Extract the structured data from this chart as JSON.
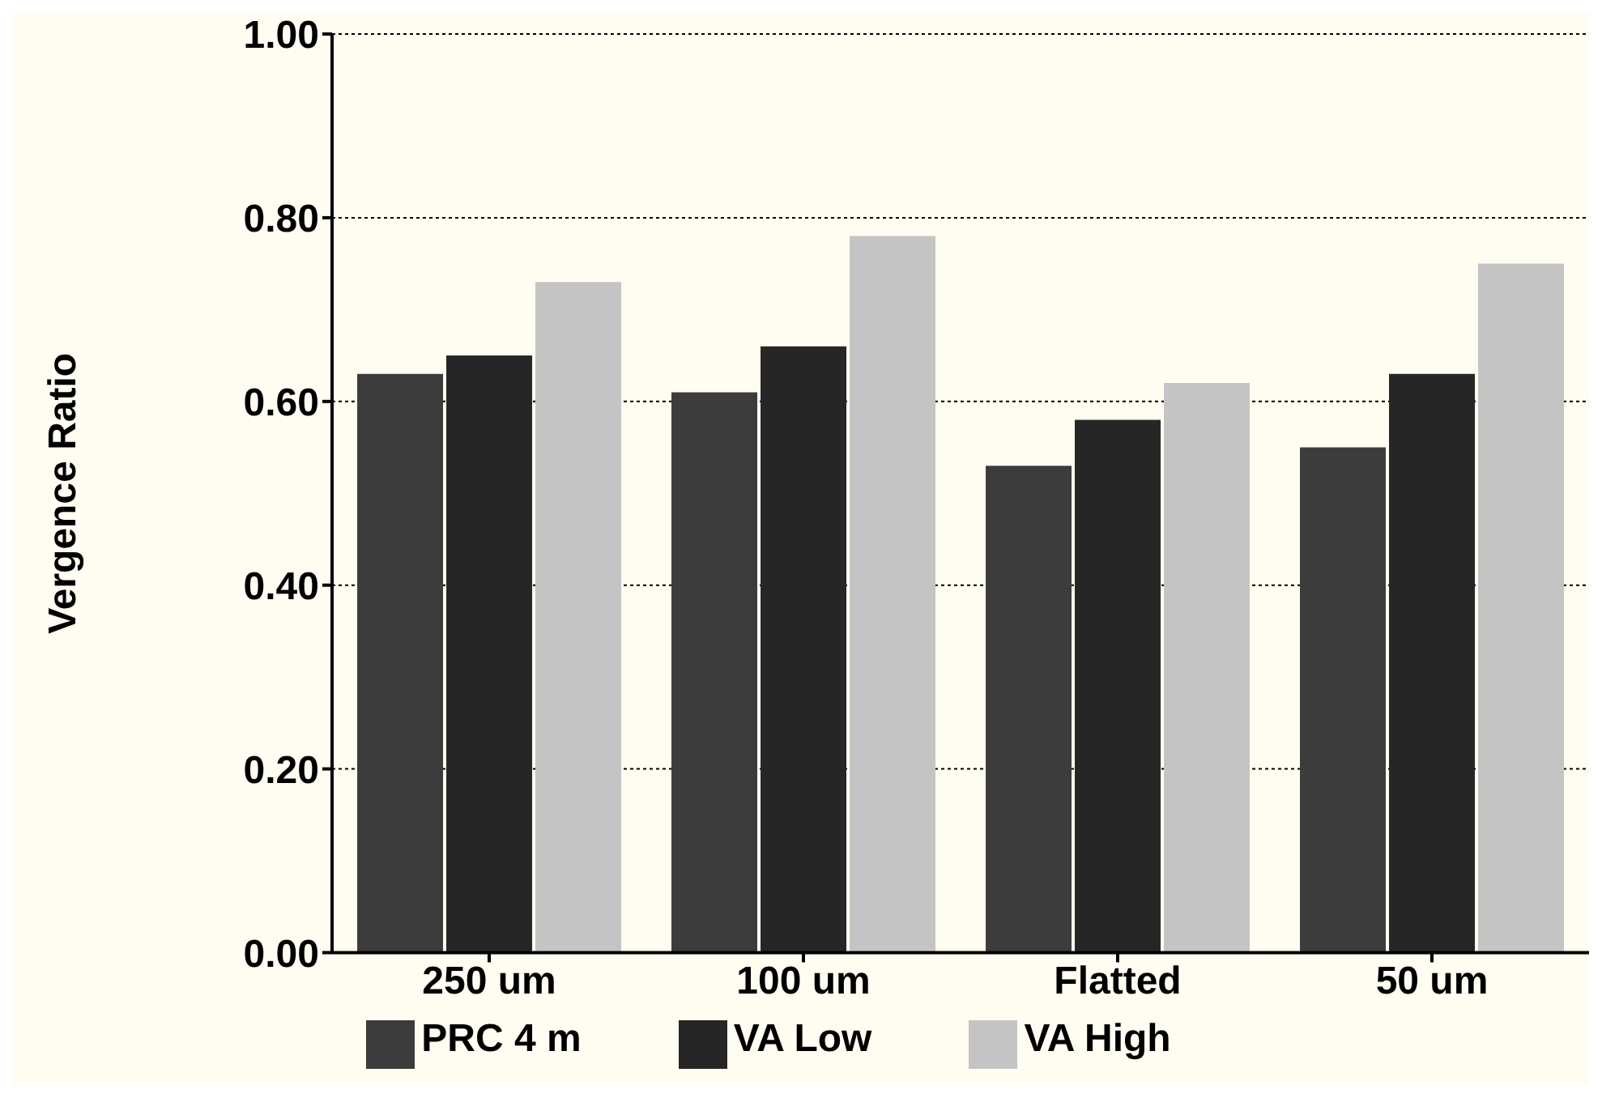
{
  "chart_data": {
    "type": "bar",
    "ylabel": "Vergence Ratio",
    "categories": [
      "250 um",
      "100 um",
      "Flatted",
      "50 um"
    ],
    "series": [
      {
        "name": "PRC 4 m",
        "color": "#3c3c3c",
        "values": [
          0.63,
          0.61,
          0.53,
          0.55
        ]
      },
      {
        "name": "VA Low",
        "color": "#262626",
        "values": [
          0.65,
          0.66,
          0.58,
          0.63
        ]
      },
      {
        "name": "VA High",
        "color": "#c4c4c4",
        "values": [
          0.73,
          0.78,
          0.62,
          0.75
        ]
      }
    ],
    "ylim": [
      0,
      1
    ],
    "yticks": [
      {
        "value": 0,
        "label": "0.00"
      },
      {
        "value": 0.2,
        "label": "0.20"
      },
      {
        "value": 0.4,
        "label": "0.40"
      },
      {
        "value": 0.6,
        "label": "0.60"
      },
      {
        "value": 0.8,
        "label": "0.80"
      },
      {
        "value": 1,
        "label": "1.00"
      }
    ],
    "grid": "y",
    "legend": "bottom"
  }
}
